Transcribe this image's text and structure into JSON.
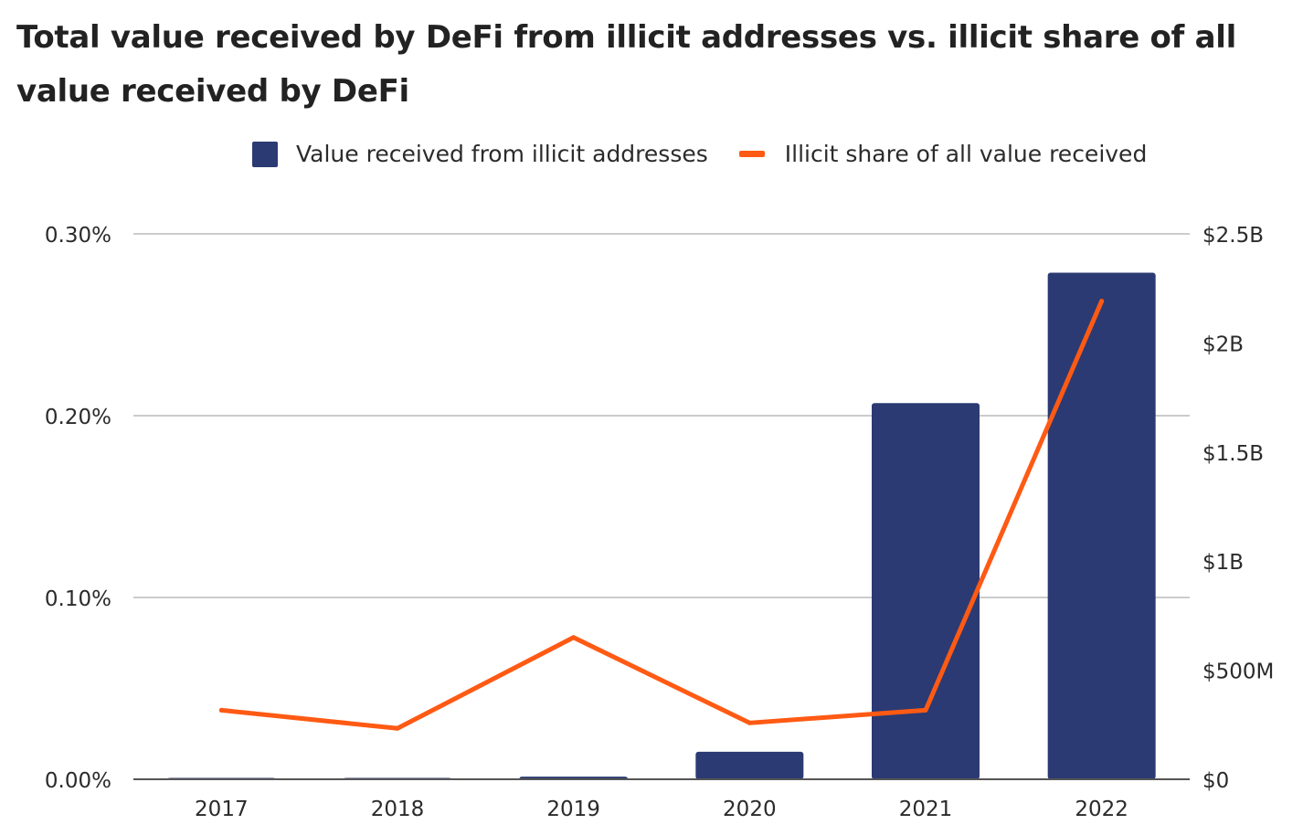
{
  "chart_data": {
    "type": "bar",
    "title": "Total value received by DeFi from illicit addresses vs. illicit share of all value received by DeFi",
    "categories": [
      "2017",
      "2018",
      "2019",
      "2020",
      "2021",
      "2022"
    ],
    "series": [
      {
        "name": "Value received from illicit addresses",
        "type": "bar",
        "axis": "right",
        "color": "#2b3a72",
        "values": [
          1000000,
          1000000,
          12000000,
          126000000,
          1724000000,
          2322000000
        ]
      },
      {
        "name": "Illicit share of all value received",
        "type": "line",
        "axis": "left",
        "color": "#ff5a14",
        "values": [
          0.038,
          0.028,
          0.078,
          0.031,
          0.038,
          0.263
        ]
      }
    ],
    "left_axis": {
      "ticks": [
        0,
        0.1,
        0.2,
        0.3
      ],
      "tick_labels": [
        "0.00%",
        "0.10%",
        "0.20%",
        "0.30%"
      ],
      "ylim": [
        0,
        0.3
      ]
    },
    "right_axis": {
      "ticks": [
        0,
        500000000,
        1000000000,
        1500000000,
        2000000000,
        2500000000
      ],
      "tick_labels": [
        "$0",
        "$500M",
        "$1B",
        "$1.5B",
        "$2B",
        "$2.5B"
      ],
      "ylim": [
        0,
        2500000000
      ]
    },
    "grid": true,
    "legend_position": "top-center"
  }
}
